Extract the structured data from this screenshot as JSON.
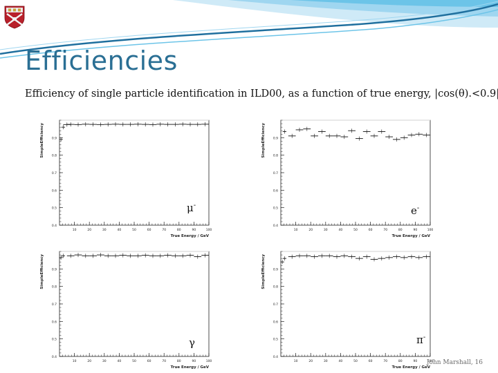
{
  "slide": {
    "title": "Efficiencies",
    "subtitle": "Efficiency of single particle identification in ILD00, as a function of true energy, |cos(θ).<0.9|",
    "footer": "John Marshall, 16"
  },
  "colors": {
    "title": "#2a6f94",
    "swoosh_dark": "#1f6f9e",
    "swoosh_light": "#6cc4e8"
  },
  "chart_data": [
    {
      "type": "line",
      "style": "error-bar-histogram",
      "particle_label": "μ",
      "particle_sup": "-",
      "ylabel": "SimpleEfficiency",
      "xlabel": "True Energy / GeV",
      "xlim": [
        0,
        100
      ],
      "ylim": [
        0.4,
        1.0
      ],
      "xticks": [
        10,
        20,
        30,
        40,
        50,
        60,
        70,
        80,
        90,
        100
      ],
      "xtick_labels": [
        "10",
        "20",
        "30",
        "40",
        "50",
        "60",
        "70",
        "80",
        "90",
        "100"
      ],
      "yticks": [
        0.4,
        0.5,
        0.6,
        0.7,
        0.8,
        0.9
      ],
      "ytick_labels": [
        "0.4",
        "0.5",
        "0.6",
        "0.7",
        "0.8",
        "0.9"
      ],
      "x": [
        1,
        2.5,
        5,
        7.5,
        12.5,
        17.5,
        22.5,
        27.5,
        32.5,
        37.5,
        42.5,
        47.5,
        52.5,
        57.5,
        62.5,
        67.5,
        72.5,
        77.5,
        82.5,
        87.5,
        92.5,
        97.5
      ],
      "values": [
        0.89,
        0.96,
        0.975,
        0.976,
        0.975,
        0.977,
        0.976,
        0.975,
        0.976,
        0.977,
        0.976,
        0.976,
        0.977,
        0.976,
        0.975,
        0.977,
        0.976,
        0.976,
        0.977,
        0.976,
        0.976,
        0.977
      ],
      "grid": false
    },
    {
      "type": "line",
      "style": "error-bar-histogram",
      "particle_label": "e",
      "particle_sup": "-",
      "ylabel": "SimpleEfficiency",
      "xlabel": "True Energy / GeV",
      "xlim": [
        0,
        100
      ],
      "ylim": [
        0.4,
        1.0
      ],
      "xticks": [
        10,
        20,
        30,
        40,
        50,
        60,
        70,
        80,
        90,
        100
      ],
      "xtick_labels": [
        "10",
        "20",
        "30",
        "40",
        "50",
        "60",
        "70",
        "80",
        "90",
        "100"
      ],
      "yticks": [
        0.4,
        0.5,
        0.6,
        0.7,
        0.8,
        0.9
      ],
      "ytick_labels": [
        "0.4",
        "0.5",
        "0.6",
        "0.7",
        "0.8",
        "0.9"
      ],
      "x": [
        2.5,
        7.5,
        12.5,
        17.5,
        22.5,
        27.5,
        32.5,
        37.5,
        42.5,
        47.5,
        52.5,
        57.5,
        62.5,
        67.5,
        72.5,
        77.5,
        82.5,
        87.5,
        92.5,
        97.5
      ],
      "values": [
        0.935,
        0.91,
        0.945,
        0.95,
        0.91,
        0.935,
        0.91,
        0.91,
        0.905,
        0.94,
        0.895,
        0.935,
        0.91,
        0.935,
        0.905,
        0.89,
        0.9,
        0.915,
        0.92,
        0.915
      ],
      "grid": false
    },
    {
      "type": "line",
      "style": "error-bar-histogram",
      "particle_label": "γ",
      "particle_sup": "",
      "ylabel": "SimpleEfficiency",
      "xlabel": "True Energy / GeV",
      "xlim": [
        0,
        100
      ],
      "ylim": [
        0.4,
        1.0
      ],
      "xticks": [
        10,
        20,
        30,
        40,
        50,
        60,
        70,
        80,
        90,
        100
      ],
      "xtick_labels": [
        "10",
        "20",
        "30",
        "40",
        "50",
        "60",
        "70",
        "80",
        "90",
        "100"
      ],
      "yticks": [
        0.4,
        0.5,
        0.6,
        0.7,
        0.8,
        0.9
      ],
      "ytick_labels": [
        "0.4",
        "0.5",
        "0.6",
        "0.7",
        "0.8",
        "0.9"
      ],
      "x": [
        1,
        2.5,
        7.5,
        12.5,
        17.5,
        22.5,
        27.5,
        32.5,
        37.5,
        42.5,
        47.5,
        52.5,
        57.5,
        62.5,
        67.5,
        72.5,
        77.5,
        82.5,
        87.5,
        92.5,
        97.5
      ],
      "values": [
        0.965,
        0.975,
        0.975,
        0.98,
        0.975,
        0.975,
        0.98,
        0.975,
        0.975,
        0.978,
        0.975,
        0.975,
        0.978,
        0.975,
        0.975,
        0.978,
        0.975,
        0.975,
        0.978,
        0.97,
        0.978
      ],
      "grid": false
    },
    {
      "type": "line",
      "style": "error-bar-histogram",
      "particle_label": "π",
      "particle_sup": "-",
      "ylabel": "SimpleEfficiency",
      "xlabel": "True Energy / GeV",
      "xlim": [
        0,
        100
      ],
      "ylim": [
        0.4,
        1.0
      ],
      "xticks": [
        10,
        20,
        30,
        40,
        50,
        60,
        70,
        80,
        90,
        100
      ],
      "xtick_labels": [
        "10",
        "20",
        "30",
        "40",
        "50",
        "60",
        "70",
        "80",
        "90",
        "100"
      ],
      "yticks": [
        0.4,
        0.5,
        0.6,
        0.7,
        0.8,
        0.9
      ],
      "ytick_labels": [
        "0.4",
        "0.5",
        "0.6",
        "0.7",
        "0.8",
        "0.9"
      ],
      "x": [
        1,
        2.5,
        7.5,
        12.5,
        17.5,
        22.5,
        27.5,
        32.5,
        37.5,
        42.5,
        47.5,
        52.5,
        57.5,
        62.5,
        67.5,
        72.5,
        77.5,
        82.5,
        87.5,
        92.5,
        97.5
      ],
      "values": [
        0.94,
        0.96,
        0.97,
        0.975,
        0.975,
        0.97,
        0.975,
        0.975,
        0.97,
        0.975,
        0.97,
        0.96,
        0.97,
        0.955,
        0.96,
        0.965,
        0.97,
        0.965,
        0.97,
        0.965,
        0.97
      ],
      "grid": false
    }
  ]
}
